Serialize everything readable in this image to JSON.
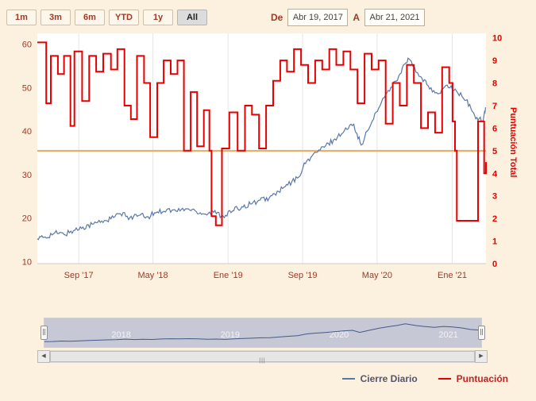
{
  "colors": {
    "background": "#fcf0df",
    "plot_bg": "#ffffff",
    "grid": "#e6e6e6",
    "axis_line": "#cccccc",
    "maroon_text": "#9e3a28",
    "red": "#e80000",
    "blue": "#5a77a9",
    "navy": "#46598a",
    "orange": "#eda85d",
    "nav_bg": "#c6c9d5",
    "nav_label": "#f2f2f6"
  },
  "range_selector": {
    "buttons": [
      {
        "label": "1m",
        "selected": false
      },
      {
        "label": "3m",
        "selected": false
      },
      {
        "label": "6m",
        "selected": false
      },
      {
        "label": "YTD",
        "selected": false
      },
      {
        "label": "1y",
        "selected": false
      },
      {
        "label": "All",
        "selected": true
      }
    ]
  },
  "date_inputs": {
    "from_label": "De",
    "from_value": "Abr 19, 2017",
    "to_label": "A",
    "to_value": "Abr 21, 2021"
  },
  "chart_data": {
    "type": "line",
    "x_range": [
      "2017-04-19",
      "2021-04-21"
    ],
    "x_ticks": [
      {
        "label": "Sep '17",
        "date": "2017-09-01"
      },
      {
        "label": "May '18",
        "date": "2018-05-01"
      },
      {
        "label": "Ene '19",
        "date": "2019-01-01"
      },
      {
        "label": "Sep '19",
        "date": "2019-09-01"
      },
      {
        "label": "May '20",
        "date": "2020-05-01"
      },
      {
        "label": "Ene '21",
        "date": "2021-01-01"
      }
    ],
    "left_axis": {
      "ticks": [
        10,
        20,
        30,
        40,
        50,
        60
      ],
      "range": [
        9.5,
        62.5
      ]
    },
    "right_axis": {
      "label": "Puntuación Total",
      "ticks": [
        0,
        1,
        2,
        3,
        4,
        5,
        6,
        7,
        8,
        9,
        10
      ],
      "range": [
        0,
        10.2
      ]
    },
    "plotline": {
      "axis": "right",
      "value": 5,
      "color": "#eda85d"
    },
    "series": [
      {
        "name": "Cierre Diario",
        "axis": "left",
        "type": "line",
        "color": "#5a77a9",
        "points": [
          [
            "2017-04-19",
            15.2
          ],
          [
            "2017-05-15",
            15.6
          ],
          [
            "2017-06-15",
            16.6
          ],
          [
            "2017-07-15",
            16.2
          ],
          [
            "2017-08-15",
            17.1
          ],
          [
            "2017-09-15",
            17.9
          ],
          [
            "2017-10-15",
            18.6
          ],
          [
            "2017-11-15",
            19.3
          ],
          [
            "2017-12-15",
            19.8
          ],
          [
            "2018-01-15",
            21.0
          ],
          [
            "2018-02-15",
            20.1
          ],
          [
            "2018-03-15",
            20.6
          ],
          [
            "2018-04-15",
            20.3
          ],
          [
            "2018-05-15",
            21.4
          ],
          [
            "2018-06-15",
            21.9
          ],
          [
            "2018-07-15",
            21.6
          ],
          [
            "2018-08-15",
            22.1
          ],
          [
            "2018-09-15",
            21.7
          ],
          [
            "2018-10-15",
            20.9
          ],
          [
            "2018-11-15",
            21.3
          ],
          [
            "2018-12-15",
            20.5
          ],
          [
            "2019-01-15",
            21.6
          ],
          [
            "2019-02-15",
            22.6
          ],
          [
            "2019-03-15",
            23.2
          ],
          [
            "2019-04-15",
            24.1
          ],
          [
            "2019-05-15",
            24.6
          ],
          [
            "2019-06-15",
            26.1
          ],
          [
            "2019-07-15",
            27.6
          ],
          [
            "2019-08-15",
            29.2
          ],
          [
            "2019-09-15",
            33.2
          ],
          [
            "2019-10-15",
            35.1
          ],
          [
            "2019-11-15",
            36.6
          ],
          [
            "2019-12-15",
            38.2
          ],
          [
            "2020-01-15",
            40.1
          ],
          [
            "2020-02-15",
            41.6
          ],
          [
            "2020-03-10",
            36.8
          ],
          [
            "2020-04-15",
            42.3
          ],
          [
            "2020-05-15",
            46.6
          ],
          [
            "2020-06-15",
            50.1
          ],
          [
            "2020-07-15",
            53.2
          ],
          [
            "2020-08-10",
            56.8
          ],
          [
            "2020-09-15",
            52.6
          ],
          [
            "2020-10-15",
            50.4
          ],
          [
            "2020-11-15",
            48.6
          ],
          [
            "2020-12-15",
            50.6
          ],
          [
            "2021-01-15",
            49.2
          ],
          [
            "2021-02-15",
            47.1
          ],
          [
            "2021-03-15",
            43.6
          ],
          [
            "2021-04-10",
            42.2
          ],
          [
            "2021-04-21",
            45.3
          ]
        ]
      },
      {
        "name": "Puntuación",
        "axis": "right",
        "type": "step",
        "color": "#e80000",
        "points": [
          [
            "2017-04-19",
            9.8
          ],
          [
            "2017-05-12",
            9.8
          ],
          [
            "2017-05-18",
            7.1
          ],
          [
            "2017-06-02",
            9.2
          ],
          [
            "2017-06-25",
            8.4
          ],
          [
            "2017-07-15",
            9.2
          ],
          [
            "2017-08-05",
            6.1
          ],
          [
            "2017-08-18",
            9.4
          ],
          [
            "2017-09-12",
            7.2
          ],
          [
            "2017-10-05",
            9.2
          ],
          [
            "2017-10-28",
            8.5
          ],
          [
            "2017-11-20",
            9.3
          ],
          [
            "2017-12-15",
            8.6
          ],
          [
            "2018-01-05",
            9.5
          ],
          [
            "2018-01-28",
            7.0
          ],
          [
            "2018-02-18",
            6.4
          ],
          [
            "2018-03-10",
            9.2
          ],
          [
            "2018-04-02",
            8.0
          ],
          [
            "2018-04-22",
            5.6
          ],
          [
            "2018-05-15",
            8.0
          ],
          [
            "2018-06-05",
            9.0
          ],
          [
            "2018-06-28",
            8.4
          ],
          [
            "2018-07-20",
            9.0
          ],
          [
            "2018-08-10",
            5.0
          ],
          [
            "2018-09-01",
            7.6
          ],
          [
            "2018-09-22",
            5.2
          ],
          [
            "2018-10-14",
            6.8
          ],
          [
            "2018-11-01",
            5.0
          ],
          [
            "2018-11-08",
            2.1
          ],
          [
            "2018-11-22",
            1.7
          ],
          [
            "2018-12-12",
            5.1
          ],
          [
            "2019-01-05",
            6.7
          ],
          [
            "2019-02-01",
            5.0
          ],
          [
            "2019-02-25",
            7.0
          ],
          [
            "2019-03-20",
            6.6
          ],
          [
            "2019-04-12",
            5.1
          ],
          [
            "2019-05-05",
            7.0
          ],
          [
            "2019-05-28",
            8.1
          ],
          [
            "2019-06-20",
            9.0
          ],
          [
            "2019-07-12",
            8.5
          ],
          [
            "2019-08-04",
            9.5
          ],
          [
            "2019-08-27",
            8.8
          ],
          [
            "2019-09-19",
            8.0
          ],
          [
            "2019-10-12",
            9.0
          ],
          [
            "2019-11-04",
            8.6
          ],
          [
            "2019-11-27",
            9.5
          ],
          [
            "2019-12-20",
            8.8
          ],
          [
            "2020-01-12",
            9.4
          ],
          [
            "2020-02-04",
            8.6
          ],
          [
            "2020-02-27",
            7.1
          ],
          [
            "2020-03-21",
            9.3
          ],
          [
            "2020-04-13",
            8.6
          ],
          [
            "2020-05-06",
            9.0
          ],
          [
            "2020-05-29",
            6.2
          ],
          [
            "2020-06-21",
            8.0
          ],
          [
            "2020-07-14",
            7.0
          ],
          [
            "2020-08-06",
            8.8
          ],
          [
            "2020-08-29",
            8.0
          ],
          [
            "2020-09-21",
            6.0
          ],
          [
            "2020-10-14",
            6.7
          ],
          [
            "2020-11-06",
            5.8
          ],
          [
            "2020-11-29",
            8.7
          ],
          [
            "2020-12-22",
            8.0
          ],
          [
            "2021-01-02",
            6.3
          ],
          [
            "2021-01-10",
            5.0
          ],
          [
            "2021-01-16",
            1.9
          ],
          [
            "2021-03-20",
            1.9
          ],
          [
            "2021-03-26",
            6.3
          ],
          [
            "2021-04-10",
            6.3
          ],
          [
            "2021-04-15",
            4.0
          ],
          [
            "2021-04-21",
            4.5
          ]
        ]
      }
    ]
  },
  "navigator": {
    "year_labels": [
      "2018",
      "2019",
      "2020",
      "2021"
    ]
  },
  "scrollbar": {
    "left_arrow": "◀",
    "right_arrow": "▶",
    "grip": "|||"
  },
  "legend": [
    {
      "label": "Cierre Diario",
      "color": "#5a77a9",
      "text_color": "#55556a"
    },
    {
      "label": "Puntuación",
      "color": "#e80000",
      "text_color": "#c22222"
    }
  ]
}
